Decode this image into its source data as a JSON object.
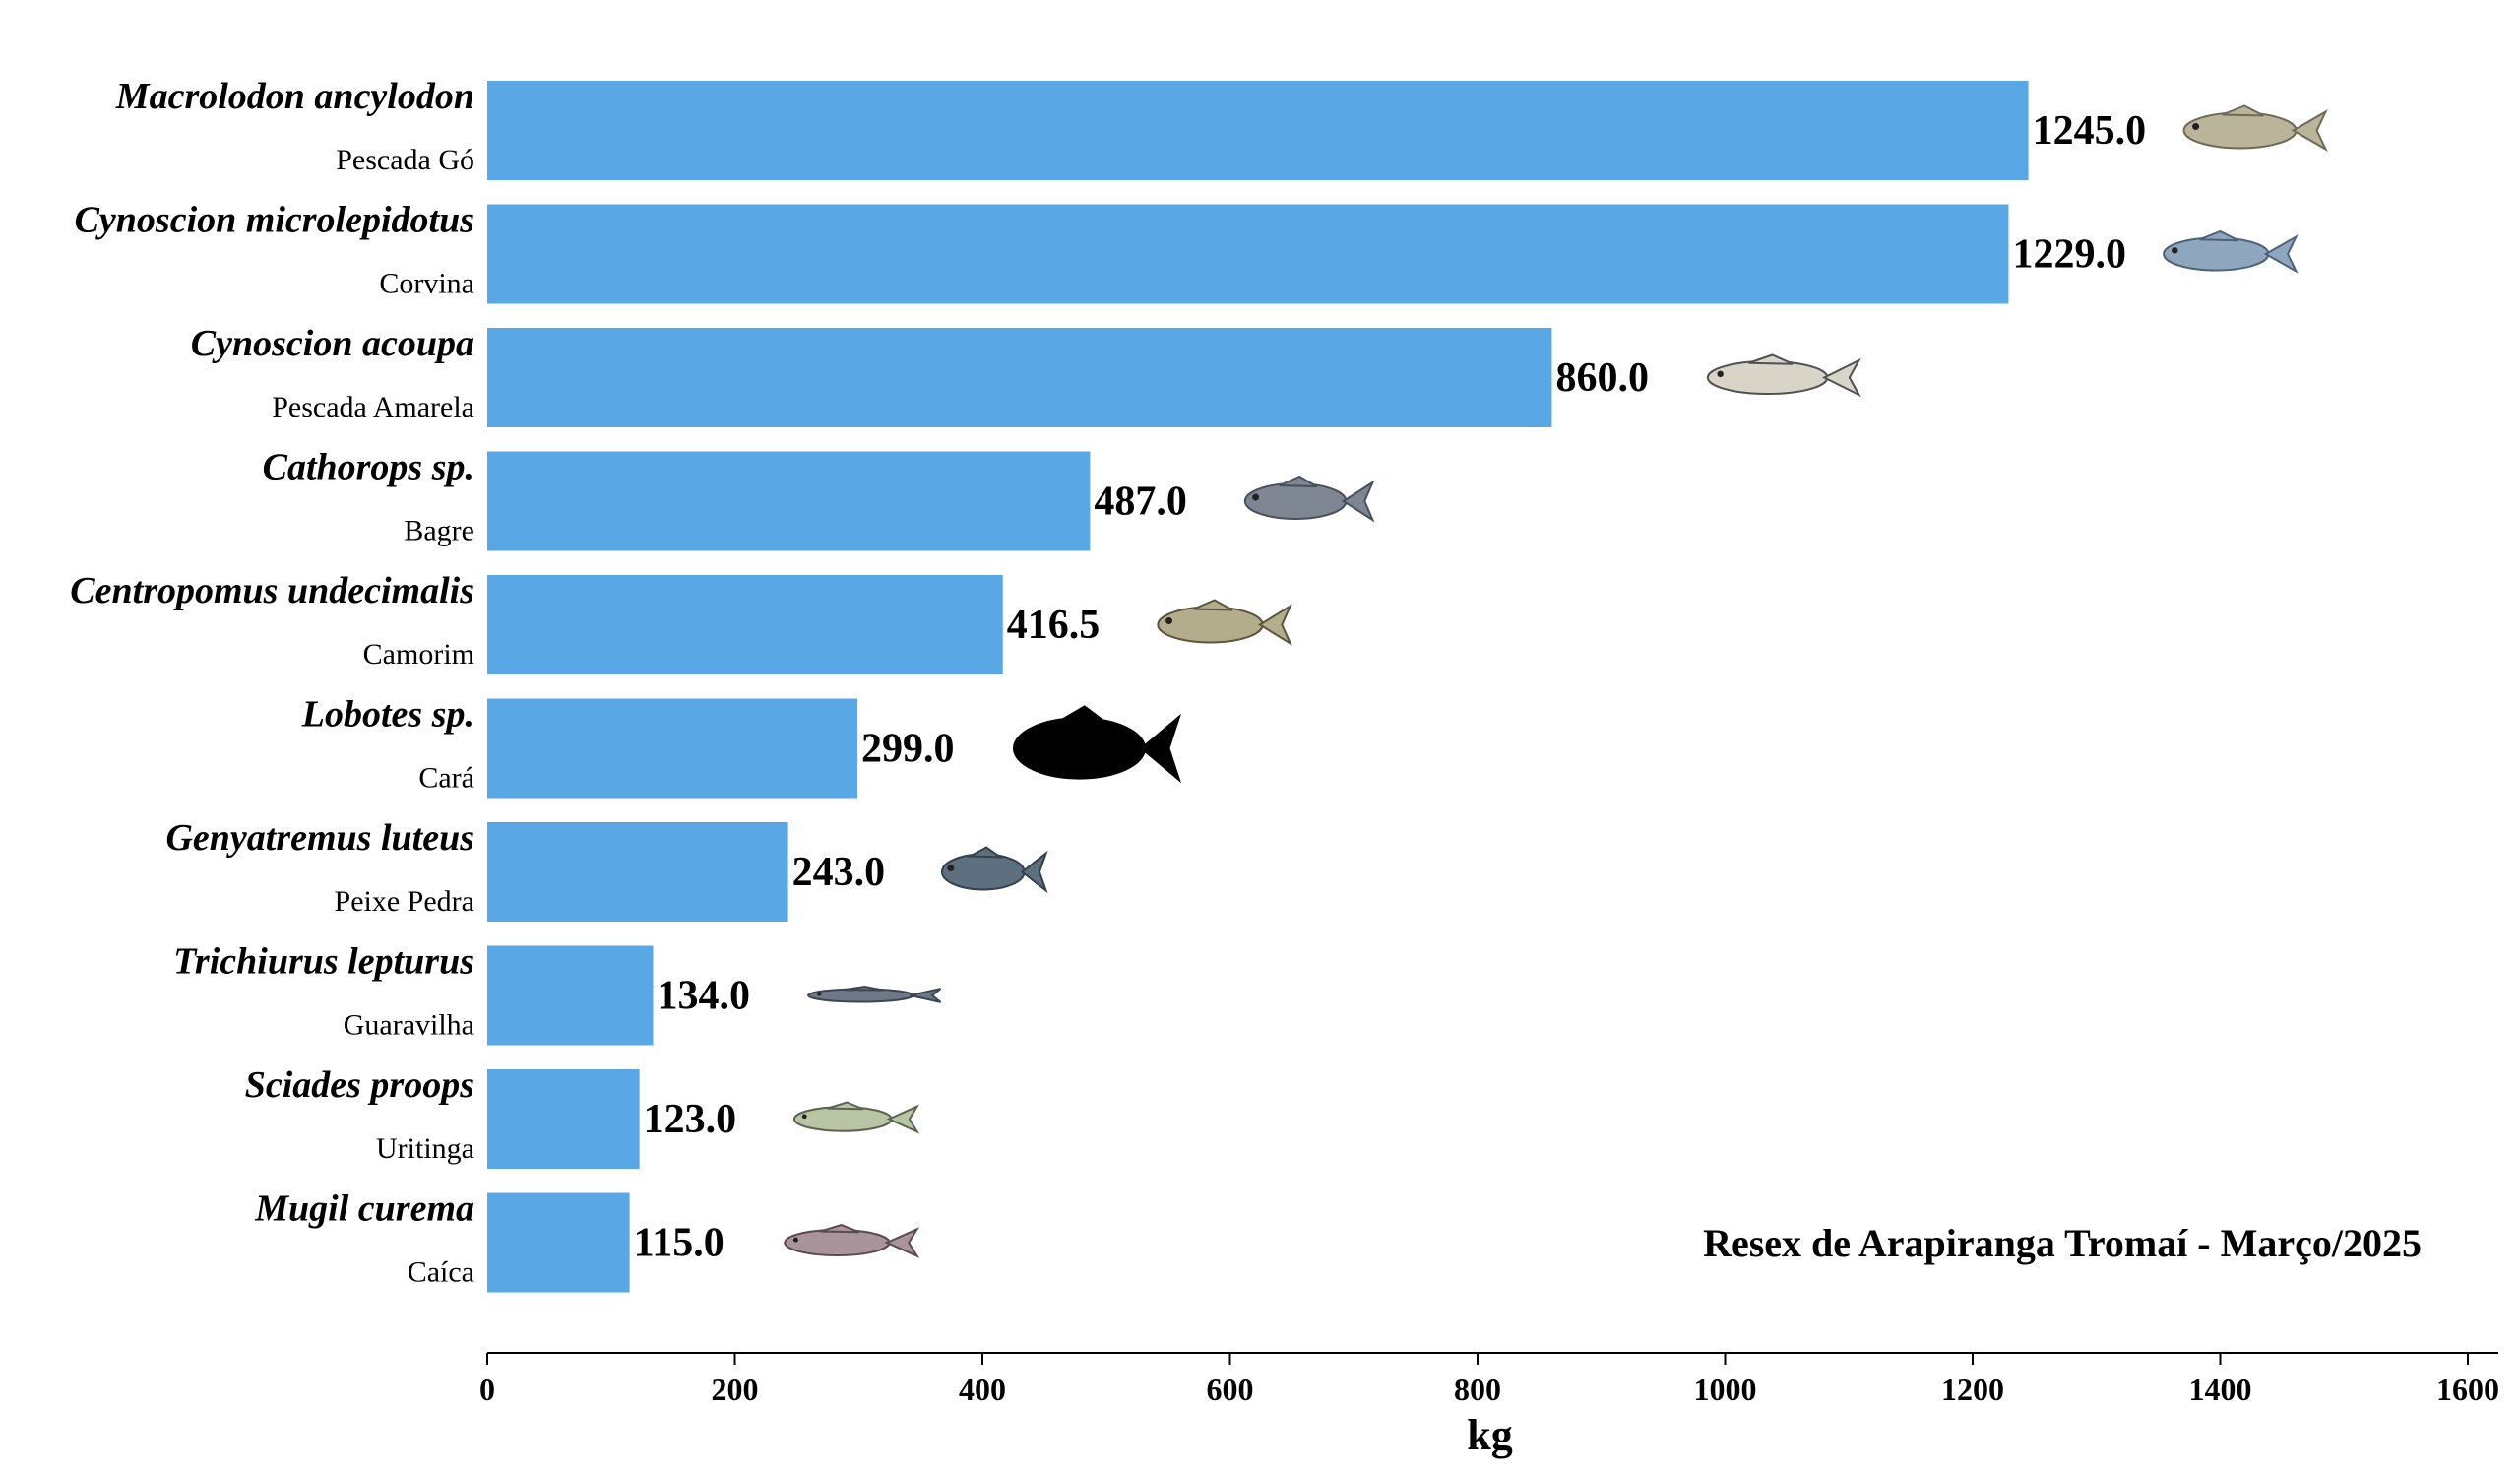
{
  "chart_data": {
    "type": "bar",
    "orientation": "horizontal",
    "categories": [
      {
        "scientific": "Macrolodon ancylodon",
        "common": "Pescada Gó",
        "icon": "weakfish-icon"
      },
      {
        "scientific": "Cynoscion microlepidotus",
        "common": "Corvina",
        "icon": "croaker-icon"
      },
      {
        "scientific": "Cynoscion acoupa",
        "common": "Pescada Amarela",
        "icon": "acoupa-weakfish-icon"
      },
      {
        "scientific": "Cathorops sp.",
        "common": "Bagre",
        "icon": "catfish-icon"
      },
      {
        "scientific": "Centropomus undecimalis",
        "common": "Camorim",
        "icon": "snook-icon"
      },
      {
        "scientific": "Lobotes sp.",
        "common": "Cará",
        "icon": "tripletail-silhouette-icon"
      },
      {
        "scientific": "Genyatremus luteus",
        "common": "Peixe Pedra",
        "icon": "grunt-icon"
      },
      {
        "scientific": "Trichiurus lepturus",
        "common": "Guaravilha",
        "icon": "cutlassfish-icon"
      },
      {
        "scientific": "Sciades proops",
        "common": "Uritinga",
        "icon": "sea-catfish-icon"
      },
      {
        "scientific": "Mugil curema",
        "common": "Caíca",
        "icon": "mullet-icon"
      }
    ],
    "values": [
      1245.0,
      1229.0,
      860.0,
      487.0,
      416.5,
      299.0,
      243.0,
      134.0,
      123.0,
      115.0
    ],
    "value_labels": [
      "1245.0",
      "1229.0",
      "860.0",
      "487.0",
      "416.5",
      "299.0",
      "243.0",
      "134.0",
      "123.0",
      "115.0"
    ],
    "xlabel": "kg",
    "xlim": [
      0,
      1620
    ],
    "xticks": [
      0,
      200,
      400,
      600,
      800,
      1000,
      1200,
      1400,
      1600
    ],
    "annotation": "Resex de Arapiranga Tromaí - Março/2025",
    "bar_color": "#5aa7e5",
    "grid": false
  }
}
